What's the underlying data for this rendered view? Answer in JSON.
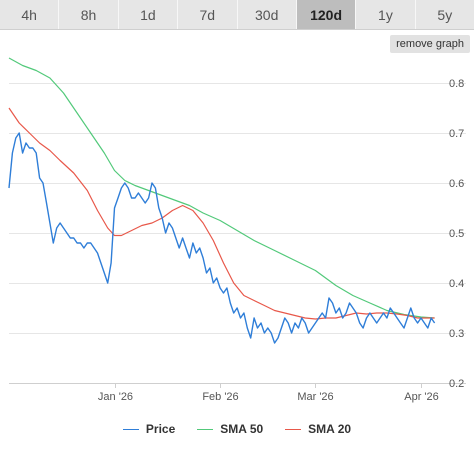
{
  "tabs": [
    {
      "label": "4h",
      "active": false
    },
    {
      "label": "8h",
      "active": false
    },
    {
      "label": "1d",
      "active": false
    },
    {
      "label": "7d",
      "active": false
    },
    {
      "label": "30d",
      "active": false
    },
    {
      "label": "120d",
      "active": true
    },
    {
      "label": "1y",
      "active": false
    },
    {
      "label": "5y",
      "active": false
    }
  ],
  "remove_graph_label": "remove graph",
  "colors": {
    "price": "#2f7ed8",
    "sma50": "#52c97a",
    "sma20": "#e8584a",
    "grid": "#e6e6e6"
  },
  "chart_data": {
    "type": "line",
    "x_ticks": [
      "Jan '26",
      "Feb '26",
      "Mar '26",
      "Apr '26"
    ],
    "x_tick_day": [
      0,
      31,
      59,
      90
    ],
    "xlim_day": [
      -31,
      95
    ],
    "ylim": [
      0.2,
      0.85
    ],
    "y_ticks": [
      "0.2",
      "0.3",
      "0.4",
      "0.5",
      "0.6",
      "0.7",
      "0.8"
    ],
    "y_tick_values": [
      0.2,
      0.3,
      0.4,
      0.5,
      0.6,
      0.7,
      0.8
    ],
    "grid": true,
    "legend": "bottom",
    "series": [
      {
        "name": "Price",
        "color_key": "price",
        "points": [
          [
            -31,
            0.59
          ],
          [
            -30,
            0.66
          ],
          [
            -29,
            0.69
          ],
          [
            -28,
            0.7
          ],
          [
            -27,
            0.66
          ],
          [
            -26,
            0.68
          ],
          [
            -25,
            0.67
          ],
          [
            -24,
            0.67
          ],
          [
            -23,
            0.66
          ],
          [
            -22,
            0.61
          ],
          [
            -21,
            0.6
          ],
          [
            -20,
            0.56
          ],
          [
            -19,
            0.52
          ],
          [
            -18,
            0.48
          ],
          [
            -17,
            0.51
          ],
          [
            -16,
            0.52
          ],
          [
            -15,
            0.51
          ],
          [
            -14,
            0.5
          ],
          [
            -13,
            0.49
          ],
          [
            -12,
            0.49
          ],
          [
            -11,
            0.48
          ],
          [
            -10,
            0.48
          ],
          [
            -9,
            0.47
          ],
          [
            -8,
            0.48
          ],
          [
            -7,
            0.48
          ],
          [
            -6,
            0.47
          ],
          [
            -5,
            0.46
          ],
          [
            -4,
            0.44
          ],
          [
            -3,
            0.42
          ],
          [
            -2,
            0.4
          ],
          [
            -1,
            0.44
          ],
          [
            0,
            0.55
          ],
          [
            1,
            0.57
          ],
          [
            2,
            0.59
          ],
          [
            3,
            0.6
          ],
          [
            4,
            0.59
          ],
          [
            5,
            0.57
          ],
          [
            6,
            0.57
          ],
          [
            7,
            0.58
          ],
          [
            8,
            0.57
          ],
          [
            9,
            0.56
          ],
          [
            10,
            0.57
          ],
          [
            11,
            0.6
          ],
          [
            12,
            0.59
          ],
          [
            13,
            0.55
          ],
          [
            14,
            0.53
          ],
          [
            15,
            0.5
          ],
          [
            16,
            0.52
          ],
          [
            17,
            0.51
          ],
          [
            18,
            0.49
          ],
          [
            19,
            0.47
          ],
          [
            20,
            0.49
          ],
          [
            21,
            0.47
          ],
          [
            22,
            0.45
          ],
          [
            23,
            0.48
          ],
          [
            24,
            0.46
          ],
          [
            25,
            0.47
          ],
          [
            26,
            0.45
          ],
          [
            27,
            0.42
          ],
          [
            28,
            0.43
          ],
          [
            29,
            0.4
          ],
          [
            30,
            0.41
          ],
          [
            31,
            0.39
          ],
          [
            32,
            0.38
          ],
          [
            33,
            0.39
          ],
          [
            34,
            0.36
          ],
          [
            35,
            0.34
          ],
          [
            36,
            0.35
          ],
          [
            37,
            0.33
          ],
          [
            38,
            0.34
          ],
          [
            39,
            0.31
          ],
          [
            40,
            0.29
          ],
          [
            41,
            0.33
          ],
          [
            42,
            0.31
          ],
          [
            43,
            0.32
          ],
          [
            44,
            0.3
          ],
          [
            45,
            0.31
          ],
          [
            46,
            0.3
          ],
          [
            47,
            0.28
          ],
          [
            48,
            0.29
          ],
          [
            49,
            0.31
          ],
          [
            50,
            0.33
          ],
          [
            51,
            0.32
          ],
          [
            52,
            0.3
          ],
          [
            53,
            0.32
          ],
          [
            54,
            0.31
          ],
          [
            55,
            0.33
          ],
          [
            56,
            0.32
          ],
          [
            57,
            0.3
          ],
          [
            58,
            0.31
          ],
          [
            59,
            0.32
          ],
          [
            60,
            0.33
          ],
          [
            61,
            0.34
          ],
          [
            62,
            0.33
          ],
          [
            63,
            0.37
          ],
          [
            64,
            0.36
          ],
          [
            65,
            0.34
          ],
          [
            66,
            0.35
          ],
          [
            67,
            0.33
          ],
          [
            68,
            0.34
          ],
          [
            69,
            0.36
          ],
          [
            70,
            0.35
          ],
          [
            71,
            0.34
          ],
          [
            72,
            0.32
          ],
          [
            73,
            0.31
          ],
          [
            74,
            0.33
          ],
          [
            75,
            0.34
          ],
          [
            76,
            0.33
          ],
          [
            77,
            0.32
          ],
          [
            78,
            0.33
          ],
          [
            79,
            0.34
          ],
          [
            80,
            0.33
          ],
          [
            81,
            0.35
          ],
          [
            82,
            0.34
          ],
          [
            83,
            0.33
          ],
          [
            84,
            0.32
          ],
          [
            85,
            0.31
          ],
          [
            86,
            0.33
          ],
          [
            87,
            0.35
          ],
          [
            88,
            0.33
          ],
          [
            89,
            0.32
          ],
          [
            90,
            0.33
          ],
          [
            91,
            0.32
          ],
          [
            92,
            0.31
          ],
          [
            93,
            0.33
          ],
          [
            94,
            0.32
          ]
        ]
      },
      {
        "name": "SMA 50",
        "color_key": "sma50",
        "points": [
          [
            -31,
            0.85
          ],
          [
            -27,
            0.835
          ],
          [
            -23,
            0.825
          ],
          [
            -19,
            0.81
          ],
          [
            -15,
            0.78
          ],
          [
            -11,
            0.74
          ],
          [
            -7,
            0.7
          ],
          [
            -3,
            0.66
          ],
          [
            0,
            0.625
          ],
          [
            3,
            0.605
          ],
          [
            6,
            0.595
          ],
          [
            10,
            0.585
          ],
          [
            14,
            0.575
          ],
          [
            18,
            0.565
          ],
          [
            22,
            0.555
          ],
          [
            26,
            0.54
          ],
          [
            31,
            0.525
          ],
          [
            36,
            0.505
          ],
          [
            41,
            0.485
          ],
          [
            47,
            0.465
          ],
          [
            53,
            0.445
          ],
          [
            59,
            0.425
          ],
          [
            65,
            0.395
          ],
          [
            70,
            0.375
          ],
          [
            75,
            0.36
          ],
          [
            80,
            0.345
          ],
          [
            85,
            0.337
          ],
          [
            90,
            0.332
          ],
          [
            94,
            0.33
          ]
        ]
      },
      {
        "name": "SMA 20",
        "color_key": "sma20",
        "points": [
          [
            -31,
            0.75
          ],
          [
            -28,
            0.72
          ],
          [
            -25,
            0.7
          ],
          [
            -22,
            0.68
          ],
          [
            -19,
            0.665
          ],
          [
            -16,
            0.645
          ],
          [
            -12,
            0.62
          ],
          [
            -8,
            0.585
          ],
          [
            -5,
            0.545
          ],
          [
            -2,
            0.51
          ],
          [
            0,
            0.495
          ],
          [
            2,
            0.495
          ],
          [
            5,
            0.505
          ],
          [
            8,
            0.515
          ],
          [
            11,
            0.52
          ],
          [
            14,
            0.53
          ],
          [
            17,
            0.545
          ],
          [
            20,
            0.555
          ],
          [
            23,
            0.545
          ],
          [
            26,
            0.52
          ],
          [
            29,
            0.485
          ],
          [
            32,
            0.44
          ],
          [
            35,
            0.4
          ],
          [
            38,
            0.375
          ],
          [
            41,
            0.365
          ],
          [
            44,
            0.355
          ],
          [
            47,
            0.345
          ],
          [
            50,
            0.34
          ],
          [
            53,
            0.335
          ],
          [
            56,
            0.33
          ],
          [
            59,
            0.328
          ],
          [
            62,
            0.33
          ],
          [
            65,
            0.33
          ],
          [
            68,
            0.335
          ],
          [
            71,
            0.34
          ],
          [
            74,
            0.338
          ],
          [
            77,
            0.34
          ],
          [
            80,
            0.34
          ],
          [
            83,
            0.338
          ],
          [
            86,
            0.335
          ],
          [
            89,
            0.33
          ],
          [
            92,
            0.33
          ],
          [
            94,
            0.33
          ]
        ]
      }
    ]
  }
}
